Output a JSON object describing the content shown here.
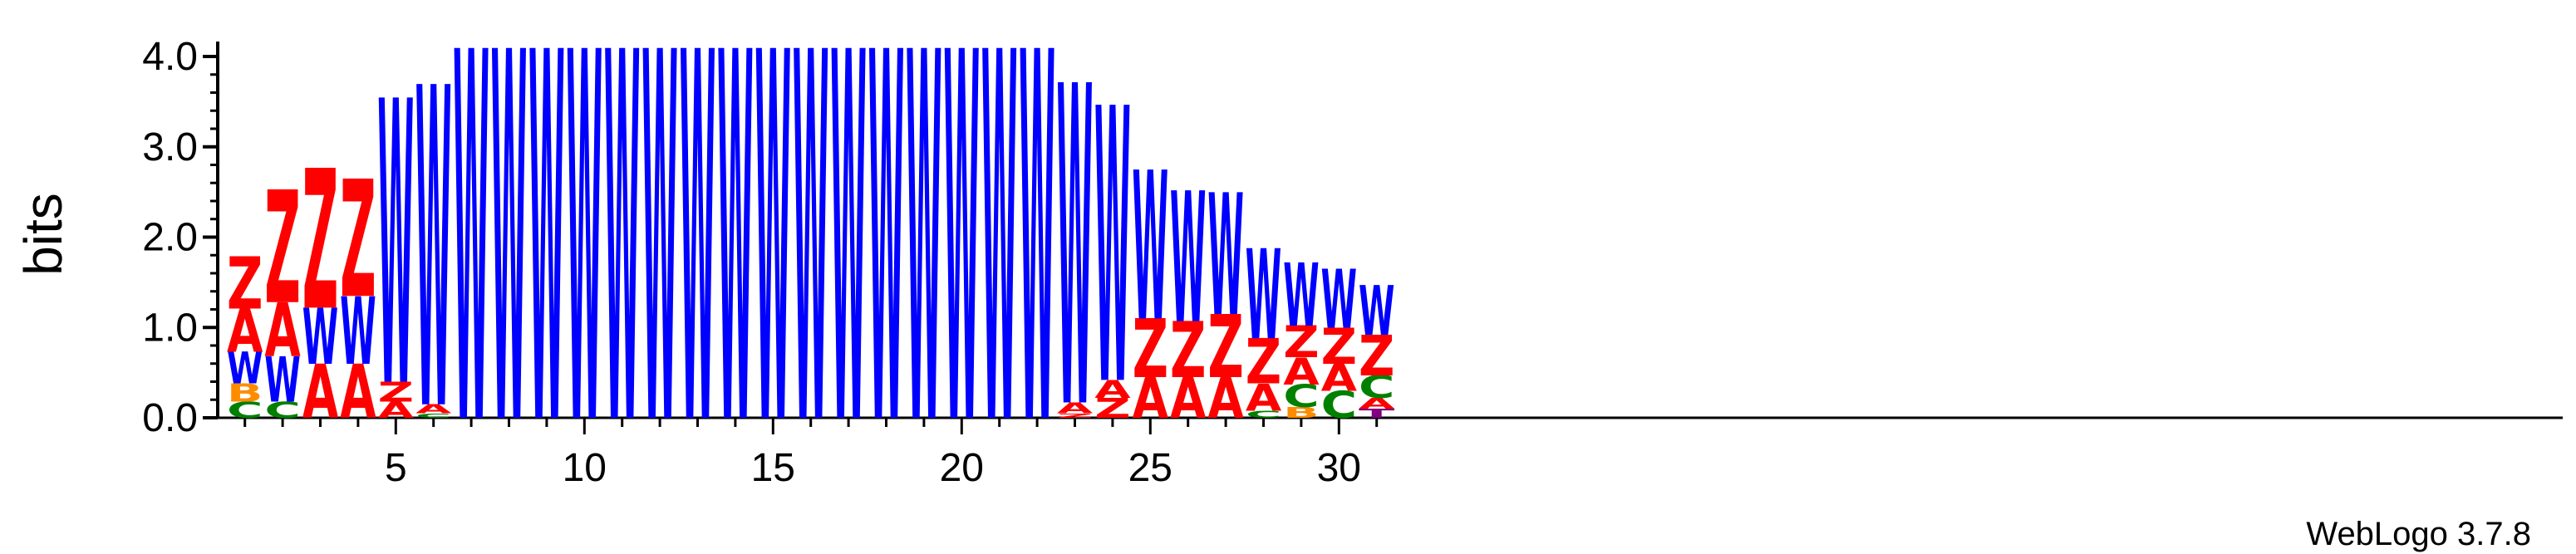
{
  "chart_data": {
    "type": "sequence-logo",
    "ylabel": "bits",
    "ylim": [
      0,
      4.0
    ],
    "y_ticks": [
      "0.0",
      "1.0",
      "2.0",
      "3.0",
      "4.0"
    ],
    "x_ticks": [
      "5",
      "10",
      "15",
      "20",
      "25",
      "30"
    ],
    "x_tick_positions": [
      5,
      10,
      15,
      20,
      25,
      30
    ],
    "credit": "WebLogo 3.7.8",
    "colors": {
      "Z": "#ff0000",
      "A": "#ff0000",
      "W": "#0000ff",
      "C": "#008000",
      "B": "#ff8c00",
      "T": "#800080"
    },
    "positions": [
      {
        "pos": 1,
        "stack": [
          [
            "C",
            0.18
          ],
          [
            "B",
            0.2
          ],
          [
            "W",
            0.35
          ],
          [
            "A",
            0.48
          ],
          [
            "Z",
            0.58
          ]
        ]
      },
      {
        "pos": 2,
        "stack": [
          [
            "C",
            0.18
          ],
          [
            "W",
            0.5
          ],
          [
            "A",
            0.6
          ],
          [
            "Z",
            1.25
          ]
        ]
      },
      {
        "pos": 3,
        "stack": [
          [
            "A",
            0.6
          ],
          [
            "W",
            0.62
          ],
          [
            "Z",
            1.55
          ]
        ]
      },
      {
        "pos": 4,
        "stack": [
          [
            "A",
            0.6
          ],
          [
            "W",
            0.75
          ],
          [
            "Z",
            1.3
          ]
        ]
      },
      {
        "pos": 5,
        "stack": [
          [
            "A",
            0.18
          ],
          [
            "Z",
            0.22
          ],
          [
            "W",
            3.15
          ]
        ]
      },
      {
        "pos": 6,
        "stack": [
          [
            "C",
            0.05
          ],
          [
            "A",
            0.1
          ],
          [
            "W",
            3.55
          ]
        ]
      },
      {
        "pos": 7,
        "stack": [
          [
            "W",
            4.1
          ]
        ]
      },
      {
        "pos": 8,
        "stack": [
          [
            "W",
            4.1
          ]
        ]
      },
      {
        "pos": 9,
        "stack": [
          [
            "W",
            4.1
          ]
        ]
      },
      {
        "pos": 10,
        "stack": [
          [
            "W",
            4.1
          ]
        ]
      },
      {
        "pos": 11,
        "stack": [
          [
            "W",
            4.1
          ]
        ]
      },
      {
        "pos": 12,
        "stack": [
          [
            "W",
            4.1
          ]
        ]
      },
      {
        "pos": 13,
        "stack": [
          [
            "W",
            4.1
          ]
        ]
      },
      {
        "pos": 14,
        "stack": [
          [
            "W",
            4.1
          ]
        ]
      },
      {
        "pos": 15,
        "stack": [
          [
            "W",
            4.1
          ]
        ]
      },
      {
        "pos": 16,
        "stack": [
          [
            "W",
            4.1
          ]
        ]
      },
      {
        "pos": 17,
        "stack": [
          [
            "W",
            4.1
          ]
        ]
      },
      {
        "pos": 18,
        "stack": [
          [
            "W",
            4.1
          ]
        ]
      },
      {
        "pos": 19,
        "stack": [
          [
            "W",
            4.1
          ]
        ]
      },
      {
        "pos": 20,
        "stack": [
          [
            "W",
            4.1
          ]
        ]
      },
      {
        "pos": 21,
        "stack": [
          [
            "W",
            4.1
          ]
        ]
      },
      {
        "pos": 22,
        "stack": [
          [
            "W",
            4.1
          ]
        ]
      },
      {
        "pos": 23,
        "stack": [
          [
            "Z",
            0.05
          ],
          [
            "A",
            0.12
          ],
          [
            "W",
            3.55
          ]
        ]
      },
      {
        "pos": 24,
        "stack": [
          [
            "Z",
            0.22
          ],
          [
            "A",
            0.2
          ],
          [
            "W",
            3.05
          ]
        ]
      },
      {
        "pos": 25,
        "stack": [
          [
            "A",
            0.45
          ],
          [
            "Z",
            0.65
          ],
          [
            "W",
            1.65
          ]
        ]
      },
      {
        "pos": 26,
        "stack": [
          [
            "A",
            0.45
          ],
          [
            "Z",
            0.62
          ],
          [
            "W",
            1.45
          ]
        ]
      },
      {
        "pos": 27,
        "stack": [
          [
            "A",
            0.45
          ],
          [
            "Z",
            0.7
          ],
          [
            "W",
            1.35
          ]
        ]
      },
      {
        "pos": 28,
        "stack": [
          [
            "C",
            0.08
          ],
          [
            "A",
            0.3
          ],
          [
            "Z",
            0.5
          ],
          [
            "W",
            1.0
          ]
        ]
      },
      {
        "pos": 29,
        "stack": [
          [
            "B",
            0.12
          ],
          [
            "C",
            0.25
          ],
          [
            "A",
            0.3
          ],
          [
            "Z",
            0.35
          ],
          [
            "W",
            0.7
          ]
        ]
      },
      {
        "pos": 30,
        "stack": [
          [
            "C",
            0.3
          ],
          [
            "A",
            0.3
          ],
          [
            "Z",
            0.4
          ],
          [
            "W",
            0.65
          ]
        ]
      },
      {
        "pos": 31,
        "stack": [
          [
            "T",
            0.1
          ],
          [
            "A",
            0.12
          ],
          [
            "C",
            0.25
          ],
          [
            "Z",
            0.45
          ],
          [
            "W",
            0.55
          ]
        ]
      }
    ]
  }
}
